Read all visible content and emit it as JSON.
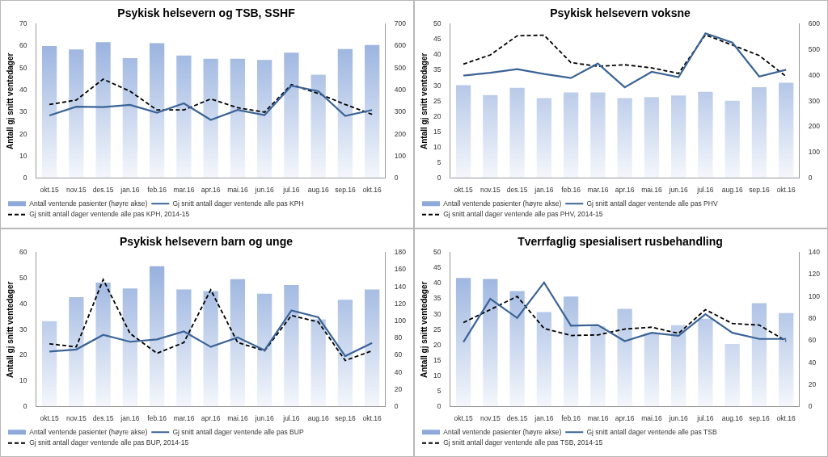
{
  "chart_data": [
    {
      "type": "bar",
      "title": "Psykisk helsevern og TSB, SSHF",
      "y_label": "Antall gj snitt ventedager",
      "categories": [
        "okt.15",
        "nov.15",
        "des.15",
        "jan.16",
        "feb.16",
        "mar.16",
        "apr.16",
        "mai.16",
        "jun.16",
        "jul.16",
        "aug.16",
        "sep.16",
        "okt.16"
      ],
      "ylim": [
        0,
        70
      ],
      "yticks": [
        0,
        10,
        20,
        30,
        40,
        50,
        60,
        70
      ],
      "y2lim": [
        0,
        700
      ],
      "y2ticks": [
        0,
        100,
        200,
        300,
        400,
        500,
        600,
        700
      ],
      "grid": false,
      "legend": "bottom",
      "series": [
        {
          "name": "Antall ventende pasienter (høyre akse)",
          "type": "bar",
          "axis": "y2",
          "color": "#8eaadb",
          "values": [
            600,
            585,
            618,
            545,
            613,
            557,
            543,
            543,
            537,
            570,
            470,
            587,
            605
          ]
        },
        {
          "name": "Gj snitt antall dager ventende alle pas KPH",
          "type": "line",
          "color": "#3b6496",
          "line_style": "solid",
          "values": [
            28.5,
            32.5,
            32.3,
            33.3,
            29.8,
            34,
            26.5,
            31,
            28.7,
            42,
            39.5,
            28.3,
            31
          ]
        },
        {
          "name": "Gj snitt antall dager ventende alle pas KPH, 2014-15",
          "type": "line",
          "color": "#000000",
          "line_style": "dashed",
          "values": [
            33.5,
            35.5,
            45,
            39.5,
            31,
            31,
            36,
            32,
            30,
            42.5,
            38.5,
            33.5,
            29
          ]
        }
      ]
    },
    {
      "type": "bar",
      "title": "Psykisk helsevern voksne",
      "y_label": "Antall gj snitt ventedager",
      "categories": [
        "okt.15",
        "nov.15",
        "des.15",
        "jan.16",
        "feb.16",
        "mar.16",
        "apr.16",
        "mai.16",
        "jun.16",
        "jul.16",
        "aug.16",
        "sep.16",
        "okt.16"
      ],
      "ylim": [
        0,
        50
      ],
      "yticks": [
        0,
        5,
        10,
        15,
        20,
        25,
        30,
        35,
        40,
        45,
        50
      ],
      "y2lim": [
        0,
        600
      ],
      "y2ticks": [
        0,
        100,
        200,
        300,
        400,
        500,
        600
      ],
      "grid": false,
      "legend": "bottom",
      "series": [
        {
          "name": "Antall ventende pasienter (høyre akse)",
          "type": "bar",
          "axis": "y2",
          "color": "#8eaadb",
          "values": [
            362,
            324,
            352,
            312,
            334,
            334,
            312,
            316,
            322,
            336,
            302,
            354,
            372
          ]
        },
        {
          "name": "Gj snitt antall dager ventende alle pas PHV",
          "type": "line",
          "color": "#3b6496",
          "line_style": "solid",
          "values": [
            33.3,
            34.2,
            35.4,
            33.8,
            32.5,
            37.2,
            29.5,
            34.5,
            32.8,
            47,
            44,
            33,
            35.2
          ]
        },
        {
          "name": "Gj snitt antall dager ventende alle pas PHV, 2014-15",
          "type": "line",
          "color": "#000000",
          "line_style": "dashed",
          "values": [
            37,
            40,
            46.2,
            46.4,
            37.5,
            36.3,
            36.8,
            35.8,
            34,
            46.5,
            43.2,
            39.8,
            33
          ]
        }
      ]
    },
    {
      "type": "bar",
      "title": "Psykisk helsevern barn og unge",
      "y_label": "Antall gj snitt ventedager",
      "categories": [
        "okt.15",
        "nov.15",
        "des.15",
        "jan.16",
        "feb.16",
        "mar.16",
        "apr.16",
        "mai.16",
        "jun.16",
        "jul.16",
        "aug.16",
        "sep.16",
        "okt.16"
      ],
      "ylim": [
        0,
        60
      ],
      "yticks": [
        0,
        10,
        20,
        30,
        40,
        50,
        60
      ],
      "y2lim": [
        0,
        180
      ],
      "y2ticks": [
        0,
        20,
        40,
        60,
        80,
        100,
        120,
        140,
        160,
        180
      ],
      "grid": false,
      "legend": "bottom",
      "series": [
        {
          "name": "Antall ventende pasienter (høyre akse)",
          "type": "bar",
          "axis": "y2",
          "color": "#8eaadb",
          "values": [
            100,
            128,
            145,
            138,
            164,
            137,
            135,
            149,
            132,
            142,
            102,
            125,
            137
          ]
        },
        {
          "name": "Gj snitt antall dager ventende alle pas BUP",
          "type": "line",
          "color": "#3b6496",
          "line_style": "solid",
          "values": [
            21.5,
            22.3,
            28,
            25.3,
            26.2,
            29.3,
            23.3,
            27,
            22,
            37.5,
            34.8,
            19.7,
            24.8
          ]
        },
        {
          "name": "Gj snitt antall dager ventende alle pas BUP, 2014-15",
          "type": "line",
          "color": "#000000",
          "line_style": "dashed",
          "values": [
            24.5,
            23.3,
            49.5,
            28.5,
            20.8,
            25,
            45.5,
            25,
            21.8,
            35.5,
            33,
            18,
            21.8
          ]
        }
      ]
    },
    {
      "type": "bar",
      "title": "Tverrfaglig spesialisert rusbehandling",
      "y_label": "Antall gj snitt ventedager",
      "categories": [
        "okt.15",
        "nov.15",
        "des.15",
        "jan.16",
        "feb.16",
        "mar.16",
        "apr.16",
        "mai.16",
        "jun.16",
        "jul.16",
        "aug.16",
        "sep.16",
        "okt.16"
      ],
      "ylim": [
        0,
        50
      ],
      "yticks": [
        0,
        5,
        10,
        15,
        20,
        25,
        30,
        35,
        40,
        45,
        50
      ],
      "y2lim": [
        0,
        140
      ],
      "y2ticks": [
        0,
        20,
        40,
        60,
        80,
        100,
        120,
        140
      ],
      "grid": false,
      "legend": "bottom",
      "series": [
        {
          "name": "Antall ventende pasienter (høyre akse)",
          "type": "bar",
          "axis": "y2",
          "color": "#8eaadb",
          "values": [
            117,
            116,
            105,
            86,
            100,
            73,
            89,
            67,
            74,
            80,
            57,
            94,
            85
          ]
        },
        {
          "name": "Gj snitt antall dager ventende alle pas TSB",
          "type": "line",
          "color": "#3b6496",
          "line_style": "solid",
          "values": [
            21,
            35,
            28.8,
            40.3,
            26.3,
            26.5,
            21.3,
            24,
            23,
            30,
            24,
            22,
            22
          ]
        },
        {
          "name": "Gj snitt antall dager ventende alle pas TSB, 2014-15",
          "type": "line",
          "color": "#000000",
          "line_style": "dashed",
          "values": [
            27.3,
            31.5,
            35.8,
            25.4,
            23.1,
            23.3,
            25.2,
            25.8,
            23.8,
            31.5,
            27,
            26.5,
            21.3
          ]
        }
      ]
    }
  ]
}
